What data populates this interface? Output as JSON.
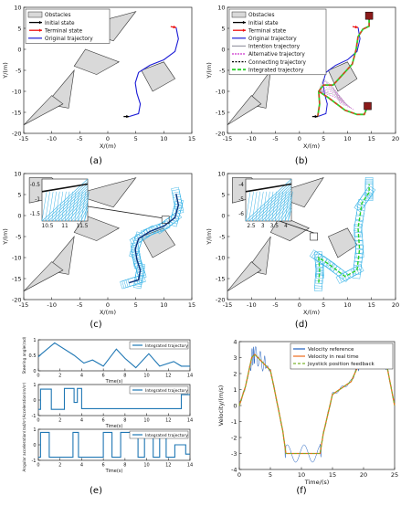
{
  "colors": {
    "obstacle_fill": "#d9d9d9",
    "obstacle_edge": "#333333",
    "initial": "#000000",
    "terminal": "#ee1111",
    "original": "#1a1ad6",
    "intention": "#9a9aa6",
    "alternative": "#cc33cc",
    "connecting": "#2ad12a",
    "integrated": "#ff2222",
    "envelope": "#3fb6e8",
    "traj_blue": "#1f77b4",
    "vel_ref": "#1f5fbf",
    "vel_rt": "#ee6a1a",
    "joystick": "#7ab32e",
    "block": "#8b1a1a"
  },
  "panels": {
    "a": {
      "tag": "(a)"
    },
    "b": {
      "tag": "(b)"
    },
    "c": {
      "tag": "(c)"
    },
    "d": {
      "tag": "(d)"
    },
    "e": {
      "tag": "(e)"
    },
    "f": {
      "tag": "(f)"
    }
  },
  "chart_data": [
    {
      "id": "a",
      "type": "line",
      "xlabel": "X/(m)",
      "ylabel": "Y/(m)",
      "xlim": [
        -15,
        15
      ],
      "ylim": [
        -20,
        10
      ],
      "xticks": [
        "-15",
        "-10",
        "-5",
        "0",
        "5",
        "10",
        "15"
      ],
      "yticks": [
        "10",
        "5",
        "0",
        "-5",
        "-10",
        "-15",
        "-20"
      ],
      "legend": [
        "Obstacles",
        "Initial state",
        "Terminal state",
        "Original trajectory"
      ],
      "legend_position": "top-left",
      "series": [
        {
          "name": "Original trajectory",
          "x": [
            3.8,
            5.5,
            5.8,
            5.2,
            4.9,
            5.5,
            7.5,
            10.0,
            12.0,
            12.6,
            12.2
          ],
          "y": [
            -16,
            -15.3,
            -13,
            -10.5,
            -8,
            -5.5,
            -3.8,
            -2.5,
            -0.5,
            2.5,
            5.2
          ]
        }
      ],
      "markers": {
        "initial": [
          3.8,
          -16
        ],
        "terminal": [
          12.2,
          5.2
        ]
      }
    },
    {
      "id": "b",
      "type": "line",
      "xlabel": "X/(m)",
      "ylabel": "Y/(m)",
      "xlim": [
        -15,
        20
      ],
      "ylim": [
        -20,
        10
      ],
      "xticks": [
        "-15",
        "-10",
        "-5",
        "0",
        "5",
        "10",
        "15",
        "20"
      ],
      "yticks": [
        "10",
        "5",
        "0",
        "-5",
        "-10",
        "-15",
        "-20"
      ],
      "legend": [
        "Obstacles",
        "Initial state",
        "Terminal state",
        "Original trajectory",
        "Intention trajectory",
        "Alternative trajectory",
        "Connecting trajectory",
        "Integrated trajectory"
      ],
      "legend_position": "top-left",
      "series": [
        {
          "name": "Original trajectory",
          "x": [
            3.8,
            5.5,
            5.8,
            5.2,
            4.9,
            5.5,
            7.5,
            10.0,
            12.0,
            12.6,
            12.2
          ],
          "y": [
            -16,
            -15.3,
            -13,
            -10.5,
            -8,
            -5.5,
            -3.8,
            -2.5,
            -0.5,
            2.5,
            5.2
          ]
        },
        {
          "name": "Integrated trajectory",
          "x": [
            3.8,
            4.2,
            4.0,
            5.0,
            7.0,
            9.0,
            11.0,
            11.8,
            12.2,
            13.2,
            14.5,
            14.5
          ],
          "y": [
            -16,
            -13,
            -10,
            -8.5,
            -8.5,
            -6.0,
            -3.5,
            0.0,
            3.0,
            4.8,
            5.5,
            7.5
          ]
        },
        {
          "name": "Integrated trajectory",
          "x": [
            4.0,
            6.0,
            9.5,
            12.0,
            13.5,
            14.2
          ],
          "y": [
            -10,
            -11.5,
            -14.5,
            -15.5,
            -15.5,
            -13.5
          ]
        }
      ],
      "markers": {
        "initial": [
          3.8,
          -16
        ],
        "terminal": [
          12.2,
          5.2
        ],
        "blocks": [
          [
            14.5,
            8
          ],
          [
            14.2,
            -13.5
          ]
        ]
      }
    },
    {
      "id": "c",
      "type": "line",
      "xlabel": "X/(m)",
      "ylabel": "Y/(m)",
      "xlim": [
        -15,
        15
      ],
      "ylim": [
        -20,
        10
      ],
      "xticks": [
        "-15",
        "-10",
        "-5",
        "0",
        "5",
        "10",
        "15"
      ],
      "yticks": [
        "10",
        "5",
        "0",
        "-5",
        "-10",
        "-15",
        "-20"
      ],
      "inset": {
        "xticks": [
          "10.5",
          "11",
          "11.5"
        ],
        "yticks": [
          "-0.5",
          "-1",
          "-1.5"
        ]
      },
      "series": [
        {
          "name": "Integrated trajectory",
          "x": [
            3.8,
            5.5,
            5.8,
            5.2,
            4.9,
            5.5,
            7.5,
            10.0,
            12.0,
            12.6,
            12.2
          ],
          "y": [
            -16,
            -15.3,
            -13,
            -10.5,
            -8,
            -5.5,
            -3.8,
            -2.5,
            -0.5,
            2.5,
            5.2
          ]
        }
      ]
    },
    {
      "id": "d",
      "type": "line",
      "xlabel": "X/(m)",
      "ylabel": "Y/(m)",
      "xlim": [
        -15,
        20
      ],
      "ylim": [
        -20,
        10
      ],
      "xticks": [
        "-15",
        "-10",
        "-5",
        "0",
        "5",
        "10",
        "15",
        "20"
      ],
      "yticks": [
        "10",
        "5",
        "0",
        "-5",
        "-10",
        "-15",
        "-20"
      ],
      "inset": {
        "xticks": [
          "2.5",
          "3",
          "3.5",
          "4"
        ],
        "yticks": [
          "-4",
          "-5",
          "-6"
        ]
      },
      "series": [
        {
          "name": "Integrated trajectory",
          "x": [
            4.0,
            4.2,
            4.0,
            6.0,
            9.5,
            12.0,
            12.5,
            12.2,
            13.0,
            14.5,
            14.5
          ],
          "y": [
            -16,
            -13,
            -10,
            -11.5,
            -14.5,
            -13,
            -8,
            -3,
            3,
            5.5,
            7.5
          ]
        }
      ]
    },
    {
      "id": "e1",
      "type": "line",
      "xlabel": "Time(s)",
      "ylabel": "Steering angle(rad)",
      "xlim": [
        0,
        14
      ],
      "ylim": [
        0,
        1
      ],
      "xticks": [
        "0",
        "2",
        "4",
        "6",
        "8",
        "10",
        "12",
        "14"
      ],
      "yticks": [
        "1",
        "0.5",
        "0"
      ],
      "legend": [
        "Integrated trajectory"
      ],
      "series": [
        {
          "name": "Integrated trajectory",
          "x": [
            0,
            0.3,
            1.5,
            3.3,
            4.2,
            5.0,
            6.0,
            7.2,
            8.0,
            9.0,
            10.2,
            11.2,
            12.5,
            13.2,
            14
          ],
          "y": [
            0.45,
            0.55,
            0.9,
            0.5,
            0.25,
            0.35,
            0.15,
            0.7,
            0.4,
            0.1,
            0.55,
            0.15,
            0.3,
            0.15,
            0.15
          ]
        }
      ]
    },
    {
      "id": "e2",
      "type": "line",
      "xlabel": "Time(s)",
      "ylabel": "Acceleration(m/s²)",
      "xlim": [
        0,
        14
      ],
      "ylim": [
        -1,
        1
      ],
      "xticks": [
        "0",
        "2",
        "4",
        "6",
        "8",
        "10",
        "12",
        "14"
      ],
      "yticks": [
        "1",
        "0",
        "-1"
      ],
      "legend": [
        "Integrated trajectory"
      ],
      "series": [
        {
          "name": "Integrated trajectory",
          "x": [
            0,
            0.2,
            0.2,
            1.2,
            1.2,
            2.4,
            2.4,
            3.3,
            3.3,
            3.6,
            3.6,
            4.0,
            4.0,
            13.2,
            13.2,
            14
          ],
          "y": [
            -0.6,
            -0.6,
            0.7,
            0.7,
            -0.6,
            -0.6,
            0.75,
            0.75,
            -0.15,
            -0.15,
            0.75,
            0.75,
            -0.55,
            -0.55,
            0.35,
            0.35
          ]
        }
      ]
    },
    {
      "id": "e3",
      "type": "line",
      "xlabel": "Time(s)",
      "ylabel": "Angular acceleration(rad/s²)",
      "xlim": [
        0,
        14
      ],
      "ylim": [
        -1,
        1
      ],
      "xticks": [
        "0",
        "2",
        "4",
        "6",
        "8",
        "10",
        "12",
        "14"
      ],
      "yticks": [
        "1",
        "0",
        "-1"
      ],
      "legend": [
        "Integrated trajectory"
      ],
      "series": [
        {
          "name": "Integrated trajectory",
          "x": [
            0,
            0.2,
            0.2,
            1.0,
            1.0,
            3.2,
            3.2,
            3.7,
            3.7,
            6.0,
            6.0,
            6.8,
            6.8,
            7.6,
            7.6,
            9.2,
            9.2,
            9.8,
            9.8,
            10.6,
            10.6,
            11.2,
            11.2,
            11.8,
            11.8,
            12.6,
            12.6,
            13.6,
            13.6,
            14
          ],
          "y": [
            -0.8,
            -0.8,
            0.8,
            0.8,
            -0.8,
            -0.8,
            0.8,
            0.8,
            -0.8,
            -0.8,
            0.8,
            0.8,
            -0.8,
            -0.8,
            0.8,
            0.8,
            -0.8,
            -0.8,
            0.8,
            0.8,
            -0.8,
            -0.8,
            0.6,
            0.6,
            -0.8,
            -0.8,
            0.0,
            0.0,
            -0.6,
            -0.6
          ]
        }
      ]
    },
    {
      "id": "f",
      "type": "line",
      "xlabel": "Time/(s)",
      "ylabel": "Velocity/(m/s)",
      "xlim": [
        0,
        25
      ],
      "ylim": [
        -4,
        4
      ],
      "xticks": [
        "0",
        "5",
        "10",
        "15",
        "20",
        "25"
      ],
      "yticks": [
        "4",
        "3",
        "2",
        "1",
        "0",
        "-1",
        "-2",
        "-3",
        "-4"
      ],
      "legend": [
        "Velocity reference",
        "Velocity in real time",
        "Joystick position feedback"
      ],
      "legend_position": "top-right",
      "series": [
        {
          "name": "Velocity reference",
          "x": [
            0,
            2,
            5,
            7,
            13,
            14,
            16,
            18,
            21,
            23,
            25
          ],
          "y": [
            0,
            3,
            2,
            0,
            0,
            -3,
            -2.5,
            2.8,
            3.2,
            3,
            0
          ]
        },
        {
          "name": "Velocity in real time",
          "x": [
            0,
            1,
            2,
            2.5,
            4,
            5,
            5.5,
            7,
            7.5,
            13,
            13.5,
            15,
            18,
            19.5,
            20.5,
            23.5,
            24,
            25
          ],
          "y": [
            0,
            1.2,
            3.0,
            3.2,
            2.6,
            2.2,
            1.3,
            -1.6,
            -3.0,
            -3.0,
            -1.8,
            0.7,
            1.5,
            2.8,
            3.0,
            3.0,
            2.0,
            0
          ]
        },
        {
          "name": "Joystick position feedback",
          "x": [
            0,
            1,
            2,
            2.5,
            4,
            5,
            5.5,
            7,
            7.5,
            13,
            13.5,
            15,
            18,
            19.5,
            20.5,
            23.5,
            24,
            25
          ],
          "y": [
            0,
            1.2,
            3.0,
            3.2,
            2.6,
            2.2,
            1.3,
            -1.6,
            -3.0,
            -3.0,
            -1.8,
            0.7,
            1.5,
            2.8,
            3.0,
            3.0,
            2.0,
            0
          ]
        }
      ]
    }
  ]
}
